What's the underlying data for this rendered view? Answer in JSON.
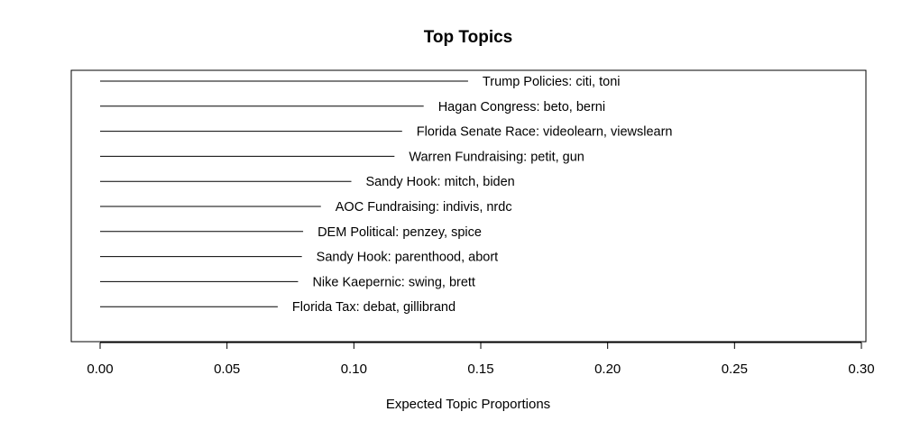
{
  "chart_data": {
    "type": "bar",
    "orientation": "horizontal",
    "title": "Top Topics",
    "xlabel": "Expected Topic Proportions",
    "ylabel": "",
    "xlim": [
      0.0,
      0.3
    ],
    "xticks": [
      0.0,
      0.05,
      0.1,
      0.15,
      0.2,
      0.25,
      0.3
    ],
    "xtick_labels": [
      "0.00",
      "0.05",
      "0.10",
      "0.15",
      "0.20",
      "0.25",
      "0.30"
    ],
    "categories": [
      "Trump Policies: citi, toni",
      "Hagan Congress: beto, berni",
      "Florida Senate Race: videolearn, viewslearn",
      "Warren Fundraising: petit, gun",
      "Sandy Hook: mitch, biden",
      "AOC Fundraising: indivis, nrdc",
      "DEM Political: penzey, spice",
      "Sandy Hook: parenthood, abort",
      "Nike Kaepernic: swing, brett",
      "Florida Tax: debat, gillibrand"
    ],
    "values": [
      0.145,
      0.1275,
      0.119,
      0.116,
      0.099,
      0.087,
      0.08,
      0.0795,
      0.078,
      0.07
    ],
    "grid": false,
    "legend": "none"
  }
}
